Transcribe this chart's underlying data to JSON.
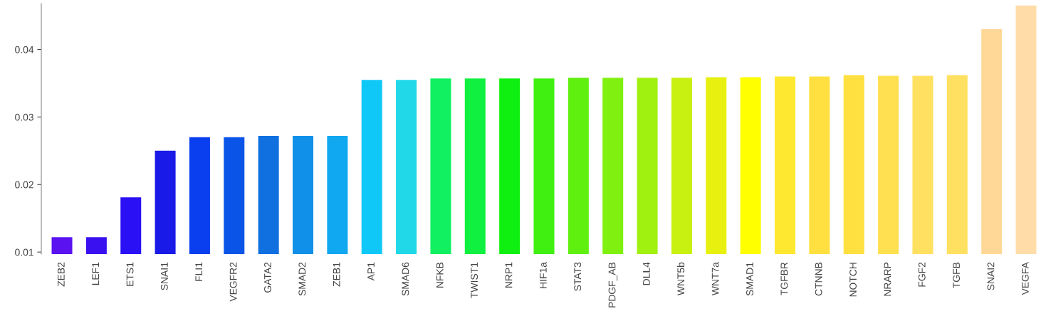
{
  "chart_data": {
    "type": "bar",
    "categories": [
      "ZEB2",
      "LEF1",
      "ETS1",
      "SNAI1",
      "FLI1",
      "VEGFR2",
      "GATA2",
      "SMAD2",
      "ZEB1",
      "AP1",
      "SMAD6",
      "NFKB",
      "TWIST1",
      "NRP1",
      "HIF1a",
      "STAT3",
      "PDGF_AB",
      "DLL4",
      "WNT5b",
      "WNT7a",
      "SMAD1",
      "TGFBR",
      "CTNNB",
      "NOTCH",
      "NRARP",
      "FGF2",
      "TGFB",
      "SNAI2",
      "VEGFA"
    ],
    "values": [
      0.0122,
      0.0122,
      0.0181,
      0.025,
      0.027,
      0.027,
      0.0272,
      0.0272,
      0.0272,
      0.0355,
      0.0355,
      0.0357,
      0.0357,
      0.0357,
      0.0357,
      0.0358,
      0.0358,
      0.0358,
      0.0358,
      0.0359,
      0.0359,
      0.036,
      0.036,
      0.0362,
      0.0361,
      0.0361,
      0.0362,
      0.043,
      0.0465
    ],
    "colors": [
      "#5b12f0",
      "#3a10f0",
      "#2a10f5",
      "#1a1ae8",
      "#0a3ff0",
      "#0a55e8",
      "#1070e0",
      "#1090e8",
      "#10a8f0",
      "#10c8f8",
      "#20d8e8",
      "#10f060",
      "#10f040",
      "#10f010",
      "#40f010",
      "#60f010",
      "#80f010",
      "#a0f010",
      "#c8f010",
      "#e8f010",
      "#ffff00",
      "#ffe830",
      "#ffe040",
      "#ffe040",
      "#ffe050",
      "#ffe060",
      "#ffe060",
      "#ffd898",
      "#ffdca8"
    ],
    "ylim": [
      0.0097,
      0.0468
    ],
    "yticks": [
      {
        "value": 0.01,
        "label": "0.01"
      },
      {
        "value": 0.02,
        "label": "0.02"
      },
      {
        "value": 0.03,
        "label": "0.03"
      },
      {
        "value": 0.04,
        "label": "0.04"
      }
    ],
    "grid": false
  }
}
